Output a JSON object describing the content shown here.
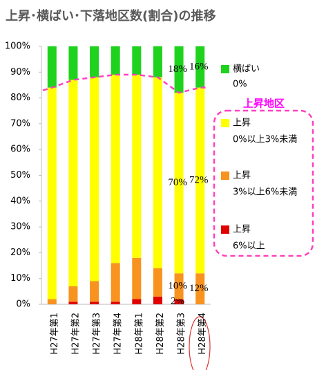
{
  "chart_data": {
    "type": "stacked_bar",
    "title": "上昇･横ばい･下落地区数(割合)の推移",
    "categories": [
      "H27年第1",
      "H27年第2",
      "H27年第3",
      "H27年第4",
      "H28年第1",
      "H28年第2",
      "H28年第3",
      "H28年第4"
    ],
    "series": [
      {
        "name": "上昇",
        "detail": "6%以上",
        "color": "#e00000",
        "values": [
          0,
          1,
          1,
          1,
          2,
          3,
          2,
          0
        ],
        "value_labels": [
          null,
          null,
          null,
          null,
          null,
          null,
          "2%",
          null
        ]
      },
      {
        "name": "上昇",
        "detail": "3%以上6%未満",
        "color": "#f7931e",
        "values": [
          2,
          6,
          8,
          15,
          16,
          11,
          10,
          12
        ],
        "value_labels": [
          null,
          null,
          null,
          null,
          null,
          null,
          "10%",
          "12%"
        ]
      },
      {
        "name": "上昇",
        "detail": "0%以上3%未満",
        "color": "#ffff00",
        "values": [
          82,
          80,
          79,
          73,
          71,
          74,
          70,
          72
        ],
        "value_labels": [
          null,
          null,
          null,
          null,
          null,
          null,
          "70%",
          "72%"
        ]
      },
      {
        "name": "横ばい",
        "detail": "0%",
        "color": "#1ed21e",
        "values": [
          16,
          13,
          12,
          11,
          11,
          12,
          18,
          16
        ],
        "value_labels": [
          null,
          null,
          null,
          null,
          null,
          null,
          "18%",
          "16%"
        ]
      }
    ],
    "legend_group": "上昇地区",
    "ylim": [
      0,
      100
    ],
    "yticks": [
      {
        "value": 0,
        "label": "0%"
      },
      {
        "value": 10,
        "label": "10%"
      },
      {
        "value": 20,
        "label": "20%"
      },
      {
        "value": 30,
        "label": "30%"
      },
      {
        "value": 40,
        "label": "40%"
      },
      {
        "value": 50,
        "label": "50%"
      },
      {
        "value": 60,
        "label": "60%"
      },
      {
        "value": 70,
        "label": "70%"
      },
      {
        "value": 80,
        "label": "80%"
      },
      {
        "value": 90,
        "label": "90%"
      },
      {
        "value": 100,
        "label": "100%"
      }
    ],
    "grid": false
  }
}
